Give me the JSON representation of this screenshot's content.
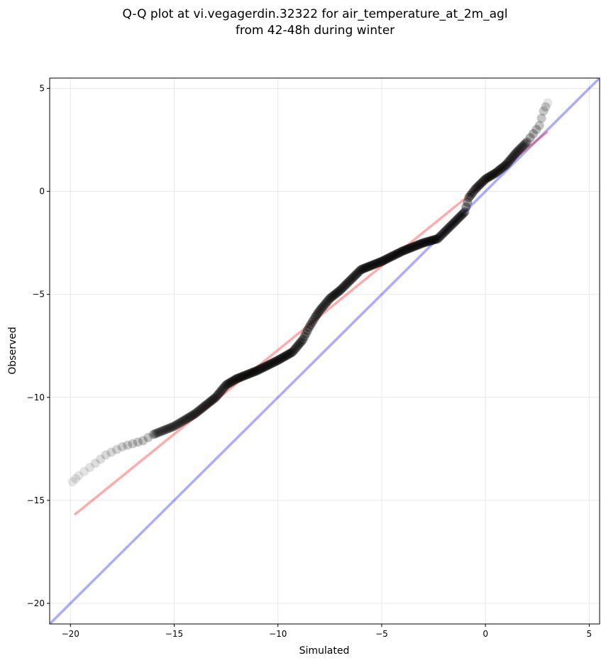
{
  "chart_data": {
    "type": "scatter",
    "title_lines": [
      "Q-Q plot at vi.vegagerdin.32322 for air_temperature_at_2m_agl",
      "from 42-48h during winter"
    ],
    "xlabel": "Simulated",
    "ylabel": "Observed",
    "xlim": [
      -21,
      5.5
    ],
    "ylim": [
      -21,
      5.5
    ],
    "xticks": [
      -20,
      -15,
      -10,
      -5,
      0,
      5
    ],
    "yticks": [
      -20,
      -15,
      -10,
      -5,
      0,
      5
    ],
    "xtick_labels": [
      "−20",
      "−15",
      "−10",
      "−5",
      "0",
      "5"
    ],
    "ytick_labels": [
      "−20",
      "−15",
      "−10",
      "−5",
      "0",
      "5"
    ],
    "grid": true,
    "colors": {
      "points": "#000000",
      "fit_line": "#ff0000",
      "identity_line": "#0000ff",
      "grid": "#e8e8e8"
    },
    "fit_line": {
      "x": [
        -19.8,
        3.0
      ],
      "y": [
        -15.7,
        2.9
      ]
    },
    "identity_line": {
      "x": [
        -21,
        5.5
      ],
      "y": [
        -21,
        5.5
      ]
    },
    "quantile_curve": {
      "x": [
        -19.9,
        -19.6,
        -18.8,
        -18.3,
        -17.5,
        -16.5,
        -16.0,
        -15.0,
        -14.0,
        -13.0,
        -12.5,
        -12.0,
        -11.0,
        -10.0,
        -9.3,
        -8.8,
        -8.5,
        -8.2,
        -8.0,
        -7.5,
        -7.0,
        -6.0,
        -5.0,
        -4.0,
        -3.0,
        -2.3,
        -2.0,
        -1.5,
        -1.0,
        -0.8,
        -0.5,
        0.0,
        0.5,
        1.0,
        1.5,
        2.0,
        2.3,
        2.6,
        2.8,
        3.0
      ],
      "y": [
        -14.1,
        -13.8,
        -13.2,
        -12.8,
        -12.4,
        -12.1,
        -11.8,
        -11.4,
        -10.8,
        -10.0,
        -9.4,
        -9.1,
        -8.7,
        -8.2,
        -7.8,
        -7.2,
        -6.6,
        -6.1,
        -5.8,
        -5.2,
        -4.8,
        -3.8,
        -3.4,
        -2.9,
        -2.5,
        -2.3,
        -2.0,
        -1.5,
        -1.0,
        -0.3,
        0.1,
        0.6,
        0.9,
        1.3,
        1.9,
        2.4,
        2.8,
        3.2,
        3.9,
        4.3
      ]
    }
  }
}
